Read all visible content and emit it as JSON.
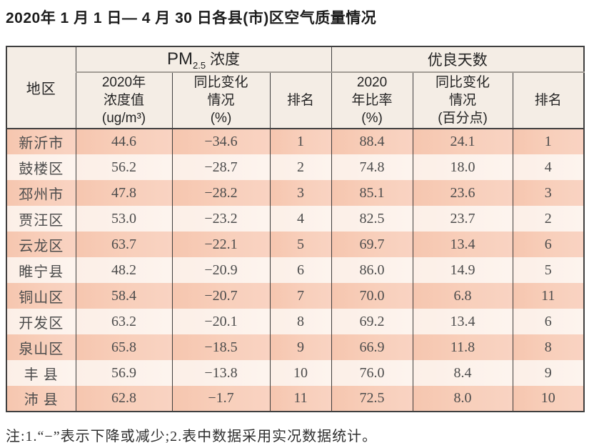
{
  "title": "2020年 1 月 1 日— 4 月 30 日各县(市)区空气质量情况",
  "note": "注:1.“−”表示下降或减少;2.表中数据采用实况数据统计。",
  "colors": {
    "header_bg": "#f4ede5",
    "row_salmon": "#f7cbb6",
    "row_light": "#fdf2ec",
    "border_dark": "#3f3f3f",
    "border_gray": "#a39d96"
  },
  "table": {
    "header": {
      "region": "地区",
      "pm_group": {
        "prefix": "PM",
        "subscript": "2.5",
        "suffix": " 浓度"
      },
      "good_days_group": "优良天数",
      "pm_value": "2020年\n浓度值\n(ug/m³)",
      "pm_change": "同比变化\n情况\n(%)",
      "pm_rank": "排名",
      "gd_ratio": "2020\n年比率\n(%)",
      "gd_change": "同比变化\n情况\n(百分点)",
      "gd_rank": "排名"
    },
    "rows": [
      {
        "region": "新沂市",
        "pm_value": "44.6",
        "pm_change": "−34.6",
        "pm_rank": "1",
        "gd_ratio": "88.4",
        "gd_change": "24.1",
        "gd_rank": "1"
      },
      {
        "region": "鼓楼区",
        "pm_value": "56.2",
        "pm_change": "−28.7",
        "pm_rank": "2",
        "gd_ratio": "74.8",
        "gd_change": "18.0",
        "gd_rank": "4"
      },
      {
        "region": "邳州市",
        "pm_value": "47.8",
        "pm_change": "−28.2",
        "pm_rank": "3",
        "gd_ratio": "85.1",
        "gd_change": "23.6",
        "gd_rank": "3"
      },
      {
        "region": "贾汪区",
        "pm_value": "53.0",
        "pm_change": "−23.2",
        "pm_rank": "4",
        "gd_ratio": "82.5",
        "gd_change": "23.7",
        "gd_rank": "2"
      },
      {
        "region": "云龙区",
        "pm_value": "63.7",
        "pm_change": "−22.1",
        "pm_rank": "5",
        "gd_ratio": "69.7",
        "gd_change": "13.4",
        "gd_rank": "6"
      },
      {
        "region": "睢宁县",
        "pm_value": "48.2",
        "pm_change": "−20.9",
        "pm_rank": "6",
        "gd_ratio": "86.0",
        "gd_change": "14.9",
        "gd_rank": "5"
      },
      {
        "region": "铜山区",
        "pm_value": "58.4",
        "pm_change": "−20.7",
        "pm_rank": "7",
        "gd_ratio": "70.0",
        "gd_change": "6.8",
        "gd_rank": "11"
      },
      {
        "region": "开发区",
        "pm_value": "63.2",
        "pm_change": "−20.1",
        "pm_rank": "8",
        "gd_ratio": "69.2",
        "gd_change": "13.4",
        "gd_rank": "6"
      },
      {
        "region": "泉山区",
        "pm_value": "65.8",
        "pm_change": "−18.5",
        "pm_rank": "9",
        "gd_ratio": "66.9",
        "gd_change": "11.8",
        "gd_rank": "8"
      },
      {
        "region": "丰 县",
        "pm_value": "56.9",
        "pm_change": "−13.8",
        "pm_rank": "10",
        "gd_ratio": "76.0",
        "gd_change": "8.4",
        "gd_rank": "9"
      },
      {
        "region": "沛 县",
        "pm_value": "62.8",
        "pm_change": "−1.7",
        "pm_rank": "11",
        "gd_ratio": "72.5",
        "gd_change": "8.0",
        "gd_rank": "10"
      }
    ]
  }
}
